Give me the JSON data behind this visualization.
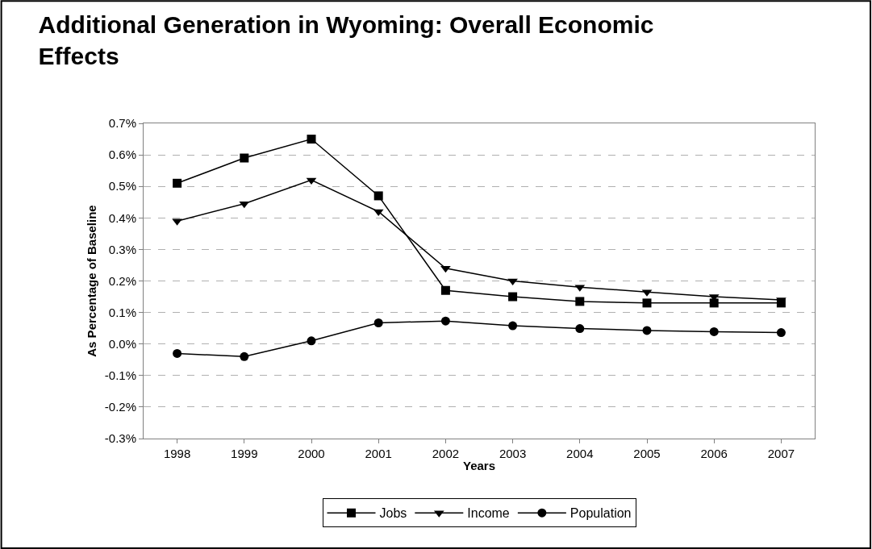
{
  "chart_data": {
    "type": "line",
    "title": "Additional Generation in Wyoming: Overall Economic Effects",
    "xlabel": "Years",
    "ylabel": "As Percentage of Baseline",
    "categories": [
      "1998",
      "1999",
      "2000",
      "2001",
      "2002",
      "2003",
      "2004",
      "2005",
      "2006",
      "2007"
    ],
    "series": [
      {
        "name": "Jobs",
        "color": "#000000",
        "marker": "square",
        "values": [
          0.51,
          0.59,
          0.65,
          0.47,
          0.17,
          0.15,
          0.135,
          0.13,
          0.13,
          0.13
        ]
      },
      {
        "name": "Income",
        "color": "#000000",
        "marker": "triangle",
        "values": [
          0.39,
          0.445,
          0.52,
          0.42,
          0.24,
          0.2,
          0.18,
          0.165,
          0.15,
          0.14
        ]
      },
      {
        "name": "Population",
        "color": "#000000",
        "marker": "circle",
        "values": [
          -0.03,
          -0.04,
          0.01,
          0.067,
          0.073,
          0.058,
          0.049,
          0.043,
          0.039,
          0.036
        ]
      }
    ],
    "ylim": [
      -0.3,
      0.7
    ],
    "yticks": [
      {
        "value": -0.3,
        "label": "-0.3%"
      },
      {
        "value": -0.2,
        "label": "-0.2%"
      },
      {
        "value": -0.1,
        "label": "-0.1%"
      },
      {
        "value": 0.0,
        "label": "0.0%"
      },
      {
        "value": 0.1,
        "label": "0.1%"
      },
      {
        "value": 0.2,
        "label": "0.2%"
      },
      {
        "value": 0.3,
        "label": "0.3%"
      },
      {
        "value": 0.4,
        "label": "0.4%"
      },
      {
        "value": 0.5,
        "label": "0.5%"
      },
      {
        "value": 0.6,
        "label": "0.6%"
      },
      {
        "value": 0.7,
        "label": "0.7%"
      }
    ],
    "grid": "y",
    "legend": "bottom",
    "line_style": "solid"
  }
}
